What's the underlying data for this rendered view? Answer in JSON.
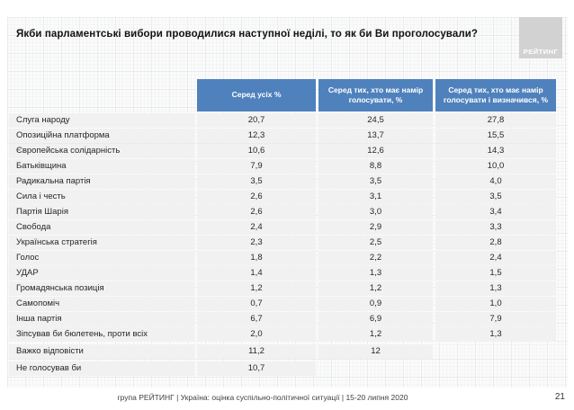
{
  "slide": {
    "title": "Якби парламентські вибори проводилися наступної неділі, то як би Ви проголосували?",
    "logo_text": "РЕЙТИНГ",
    "footer": "група РЕЙТИНГ |  Україна: оцінка суспільно-політичної  ситуації  | 15-20 липня  2020",
    "page_number": "21"
  },
  "colors": {
    "header_blue": "#4f81bd",
    "row_gray": "#f1f1f1",
    "logo_gray": "#d2d2d2"
  },
  "chart_data": {
    "type": "table",
    "title": "Якби парламентські вибори проводилися наступної неділі, то як би Ви проголосували?",
    "decimal_separator": ",",
    "columns": [
      "Серед усіх %",
      "Серед тих, хто має намір голосувати, %",
      "Серед тих, хто має намір голосувати і визначився, %"
    ],
    "rows": [
      {
        "label": "Слуга народу",
        "values": [
          "20,7",
          "24,5",
          "27,8"
        ],
        "group": "party"
      },
      {
        "label": "Опозиційна платформа",
        "values": [
          "12,3",
          "13,7",
          "15,5"
        ],
        "group": "party"
      },
      {
        "label": "Європейська солідарність",
        "values": [
          "10,6",
          "12,6",
          "14,3"
        ],
        "group": "party"
      },
      {
        "label": "Батьківщина",
        "values": [
          "7,9",
          "8,8",
          "10,0"
        ],
        "group": "party"
      },
      {
        "label": "Радикальна партія",
        "values": [
          "3,5",
          "3,5",
          "4,0"
        ],
        "group": "party"
      },
      {
        "label": "Сила і честь",
        "values": [
          "2,6",
          "3,1",
          "3,5"
        ],
        "group": "party"
      },
      {
        "label": "Партія Шарія",
        "values": [
          "2,6",
          "3,0",
          "3,4"
        ],
        "group": "party"
      },
      {
        "label": "Свобода",
        "values": [
          "2,4",
          "2,9",
          "3,3"
        ],
        "group": "party"
      },
      {
        "label": "Українська стратегія",
        "values": [
          "2,3",
          "2,5",
          "2,8"
        ],
        "group": "party"
      },
      {
        "label": "Голос",
        "values": [
          "1,8",
          "2,2",
          "2,4"
        ],
        "group": "party"
      },
      {
        "label": "УДАР",
        "values": [
          "1,4",
          "1,3",
          "1,5"
        ],
        "group": "party"
      },
      {
        "label": "Громадянська позиція",
        "values": [
          "1,2",
          "1,2",
          "1,3"
        ],
        "group": "party"
      },
      {
        "label": "Самопоміч",
        "values": [
          "0,7",
          "0,9",
          "1,0"
        ],
        "group": "party"
      },
      {
        "label": "Інша партія",
        "values": [
          "6,7",
          "6,9",
          "7,9"
        ],
        "group": "party"
      },
      {
        "label": "Зіпсував би бюлетень, проти всіх",
        "values": [
          "2,0",
          "1,2",
          "1,3"
        ],
        "group": "party"
      },
      {
        "label": "Важко відповісти",
        "values": [
          "11,2",
          "12",
          ""
        ],
        "group": "summary"
      },
      {
        "label": "Не голосував би",
        "values": [
          "10,7",
          "",
          ""
        ],
        "group": "summary"
      }
    ]
  }
}
